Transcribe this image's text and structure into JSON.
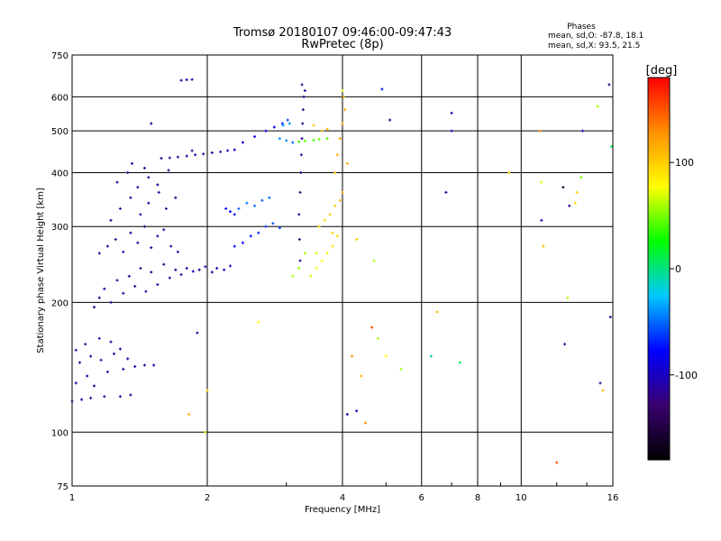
{
  "chart_data": {
    "type": "scatter",
    "title": "Tromsø 20180107 09:46:00-09:47:43",
    "subtitle": "RwPretec (8p)",
    "xlabel": "Frequency [MHz]",
    "ylabel": "Stationary phase Virtual Height [km]",
    "x_scale": "log",
    "y_scale": "log",
    "xlim": [
      1,
      16
    ],
    "ylim": [
      75,
      750
    ],
    "x_ticks": [
      1,
      2,
      4,
      6,
      8,
      10,
      16
    ],
    "x_tick_labels": [
      "1",
      "2",
      "4",
      "6",
      "8",
      "10",
      "16"
    ],
    "y_ticks": [
      75,
      100,
      200,
      300,
      400,
      500,
      600,
      750
    ],
    "y_tick_labels": [
      "75",
      "100",
      "200",
      "300",
      "400",
      "500",
      "600",
      "750"
    ],
    "grid": true,
    "stats": {
      "title": "Phases",
      "line_o": "mean, sd,O: -87.8, 18.1",
      "line_x": "mean, sd,X:  93.5, 21.5"
    },
    "colorbar": {
      "label": "[deg]",
      "range": [
        -180,
        180
      ],
      "ticks": [
        100,
        0,
        -100
      ],
      "tick_labels": [
        "100",
        "0",
        "-100"
      ],
      "colormap": [
        "#000000",
        "#3a0070",
        "#0000ff",
        "#00c8ff",
        "#00ff00",
        "#ffff00",
        "#ff9000",
        "#ff0000"
      ]
    },
    "series": [
      {
        "points": [
          [
            1.0,
            118,
            -115
          ],
          [
            1.05,
            119,
            -110
          ],
          [
            1.1,
            120,
            -118
          ],
          [
            1.18,
            121,
            -112
          ],
          [
            1.28,
            121,
            -108
          ],
          [
            1.35,
            122,
            -115
          ],
          [
            1.02,
            130,
            -110
          ],
          [
            1.08,
            135,
            -105
          ],
          [
            1.12,
            128,
            -115
          ],
          [
            1.2,
            138,
            -112
          ],
          [
            1.3,
            140,
            -110
          ],
          [
            1.38,
            142,
            -108
          ],
          [
            1.04,
            145,
            -112
          ],
          [
            1.1,
            150,
            -118
          ],
          [
            1.16,
            147,
            -110
          ],
          [
            1.24,
            152,
            -115
          ],
          [
            1.33,
            148,
            -110
          ],
          [
            1.45,
            143,
            -112
          ],
          [
            1.52,
            143,
            -105
          ],
          [
            1.02,
            155,
            -110
          ],
          [
            1.07,
            160,
            -115
          ],
          [
            1.15,
            165,
            -112
          ],
          [
            1.22,
            162,
            -110
          ],
          [
            1.28,
            156,
            -108
          ],
          [
            1.12,
            195,
            -120
          ],
          [
            1.15,
            205,
            -115
          ],
          [
            1.18,
            215,
            -112
          ],
          [
            1.22,
            200,
            -118
          ],
          [
            1.26,
            225,
            -112
          ],
          [
            1.3,
            210,
            -110
          ],
          [
            1.34,
            230,
            -115
          ],
          [
            1.38,
            218,
            -112
          ],
          [
            1.42,
            240,
            -118
          ],
          [
            1.46,
            212,
            -110
          ],
          [
            1.5,
            235,
            -115
          ],
          [
            1.55,
            220,
            -112
          ],
          [
            1.6,
            245,
            -118
          ],
          [
            1.65,
            228,
            -110
          ],
          [
            1.7,
            238,
            -112
          ],
          [
            1.75,
            232,
            -115
          ],
          [
            1.8,
            240,
            -110
          ],
          [
            1.86,
            236,
            -108
          ],
          [
            1.92,
            238,
            -115
          ],
          [
            1.98,
            242,
            -110
          ],
          [
            2.05,
            235,
            -112
          ],
          [
            2.1,
            240,
            -110
          ],
          [
            2.18,
            238,
            -105
          ],
          [
            2.25,
            243,
            -100
          ],
          [
            1.15,
            260,
            -112
          ],
          [
            1.2,
            270,
            -115
          ],
          [
            1.25,
            280,
            -118
          ],
          [
            1.3,
            262,
            -110
          ],
          [
            1.35,
            290,
            -112
          ],
          [
            1.4,
            275,
            -115
          ],
          [
            1.45,
            300,
            -118
          ],
          [
            1.5,
            268,
            -112
          ],
          [
            1.55,
            285,
            -110
          ],
          [
            1.6,
            295,
            -115
          ],
          [
            1.66,
            270,
            -112
          ],
          [
            1.72,
            262,
            -110
          ],
          [
            1.22,
            310,
            -115
          ],
          [
            1.28,
            330,
            -112
          ],
          [
            1.35,
            350,
            -118
          ],
          [
            1.42,
            320,
            -110
          ],
          [
            1.48,
            340,
            -115
          ],
          [
            1.56,
            360,
            -112
          ],
          [
            1.62,
            330,
            -110
          ],
          [
            1.7,
            350,
            -115
          ],
          [
            1.26,
            380,
            -112
          ],
          [
            1.33,
            400,
            -118
          ],
          [
            1.4,
            370,
            -110
          ],
          [
            1.48,
            390,
            -115
          ],
          [
            1.55,
            375,
            -112
          ],
          [
            1.64,
            405,
            -110
          ],
          [
            1.36,
            420,
            -115
          ],
          [
            1.45,
            410,
            -112
          ],
          [
            1.58,
            432,
            -112
          ],
          [
            1.65,
            433,
            -115
          ],
          [
            1.72,
            435,
            -110
          ],
          [
            1.8,
            437,
            -112
          ],
          [
            1.88,
            440,
            -108
          ],
          [
            1.96,
            442,
            -110
          ],
          [
            2.05,
            445,
            -112
          ],
          [
            2.14,
            447,
            -105
          ],
          [
            2.22,
            450,
            -100
          ],
          [
            2.3,
            452,
            -95
          ],
          [
            1.75,
            655,
            -110
          ],
          [
            1.8,
            657,
            -112
          ],
          [
            1.85,
            658,
            -108
          ],
          [
            1.5,
            520,
            -110
          ],
          [
            1.85,
            450,
            -112
          ],
          [
            2.4,
            470,
            -95
          ],
          [
            2.55,
            485,
            -90
          ],
          [
            2.7,
            500,
            -85
          ],
          [
            2.82,
            510,
            -80
          ],
          [
            2.94,
            520,
            -70
          ],
          [
            3.02,
            530,
            -60
          ],
          [
            3.2,
            320,
            -120
          ],
          [
            3.22,
            360,
            -125
          ],
          [
            3.23,
            400,
            -120
          ],
          [
            3.24,
            440,
            -118
          ],
          [
            3.25,
            480,
            -115
          ],
          [
            3.26,
            520,
            -120
          ],
          [
            3.27,
            560,
            -118
          ],
          [
            3.28,
            600,
            -115
          ],
          [
            3.25,
            640,
            -120
          ],
          [
            3.3,
            620,
            -118
          ],
          [
            3.21,
            280,
            -120
          ],
          [
            3.22,
            250,
            -115
          ],
          [
            2.3,
            270,
            -80
          ],
          [
            2.4,
            275,
            -75
          ],
          [
            2.5,
            285,
            -70
          ],
          [
            2.6,
            290,
            -65
          ],
          [
            2.7,
            300,
            -60
          ],
          [
            2.8,
            305,
            -55
          ],
          [
            2.9,
            298,
            -60
          ],
          [
            2.35,
            330,
            -50
          ],
          [
            2.45,
            340,
            -45
          ],
          [
            2.55,
            335,
            -50
          ],
          [
            2.65,
            345,
            -55
          ],
          [
            2.75,
            350,
            -50
          ],
          [
            2.2,
            330,
            -85
          ],
          [
            2.25,
            325,
            -80
          ],
          [
            2.3,
            320,
            -75
          ],
          [
            2.9,
            480,
            -40
          ],
          [
            3.0,
            475,
            -45
          ],
          [
            3.1,
            470,
            -50
          ],
          [
            2.95,
            515,
            -35
          ],
          [
            3.05,
            520,
            -40
          ],
          [
            3.2,
            472,
            40
          ],
          [
            3.3,
            474,
            42
          ],
          [
            3.45,
            476,
            38
          ],
          [
            3.55,
            478,
            45
          ],
          [
            3.7,
            480,
            40
          ],
          [
            3.4,
            230,
            70
          ],
          [
            3.5,
            240,
            75
          ],
          [
            3.6,
            250,
            80
          ],
          [
            3.7,
            260,
            85
          ],
          [
            3.8,
            270,
            90
          ],
          [
            3.9,
            285,
            95
          ],
          [
            3.55,
            300,
            90
          ],
          [
            3.65,
            310,
            95
          ],
          [
            3.75,
            320,
            100
          ],
          [
            3.85,
            335,
            105
          ],
          [
            3.95,
            345,
            110
          ],
          [
            4.0,
            360,
            115
          ],
          [
            3.85,
            400,
            110
          ],
          [
            3.9,
            440,
            115
          ],
          [
            3.95,
            480,
            120
          ],
          [
            4.0,
            520,
            118
          ],
          [
            4.05,
            560,
            120
          ],
          [
            4.02,
            600,
            115
          ],
          [
            3.3,
            260,
            60
          ],
          [
            3.2,
            240,
            55
          ],
          [
            3.1,
            230,
            60
          ],
          [
            3.6,
            500,
            110
          ],
          [
            3.7,
            505,
            115
          ],
          [
            3.45,
            515,
            105
          ],
          [
            4.0,
            620,
            70
          ],
          [
            4.1,
            420,
            120
          ],
          [
            3.5,
            260,
            65
          ],
          [
            3.8,
            290,
            100
          ],
          [
            4.3,
            280,
            100
          ],
          [
            4.1,
            110,
            -110
          ],
          [
            4.3,
            112,
            -105
          ],
          [
            4.5,
            105,
            130
          ],
          [
            4.7,
            250,
            60
          ],
          [
            4.9,
            625,
            -70
          ],
          [
            5.0,
            150,
            80
          ],
          [
            5.1,
            530,
            -110
          ],
          [
            5.4,
            140,
            60
          ],
          [
            6.3,
            150,
            -10
          ],
          [
            6.8,
            360,
            -110
          ],
          [
            7.0,
            500,
            -100
          ],
          [
            7.0,
            550,
            -105
          ],
          [
            6.5,
            190,
            110
          ],
          [
            7.3,
            145,
            10
          ],
          [
            9.4,
            400,
            100
          ],
          [
            11.0,
            500,
            130
          ],
          [
            11.1,
            310,
            -100
          ],
          [
            11.2,
            270,
            110
          ],
          [
            11.1,
            380,
            70
          ],
          [
            12.4,
            370,
            -160
          ],
          [
            12.8,
            335,
            -120
          ],
          [
            12.5,
            160,
            -110
          ],
          [
            13.2,
            340,
            90
          ],
          [
            13.3,
            360,
            100
          ],
          [
            13.6,
            390,
            50
          ],
          [
            13.7,
            500,
            -100
          ],
          [
            14.8,
            570,
            60
          ],
          [
            15.0,
            130,
            -120
          ],
          [
            15.2,
            125,
            110
          ],
          [
            15.7,
            640,
            -120
          ],
          [
            15.9,
            460,
            10
          ],
          [
            15.8,
            185,
            -120
          ],
          [
            12.7,
            205,
            60
          ],
          [
            12.0,
            85,
            150
          ],
          [
            1.82,
            110,
            110
          ],
          [
            2.0,
            125,
            110
          ],
          [
            1.9,
            170,
            -120
          ],
          [
            1.98,
            100,
            60
          ],
          [
            2.6,
            180,
            80
          ],
          [
            4.65,
            175,
            150
          ],
          [
            4.8,
            165,
            60
          ],
          [
            4.2,
            150,
            130
          ],
          [
            4.4,
            135,
            110
          ]
        ]
      }
    ]
  }
}
